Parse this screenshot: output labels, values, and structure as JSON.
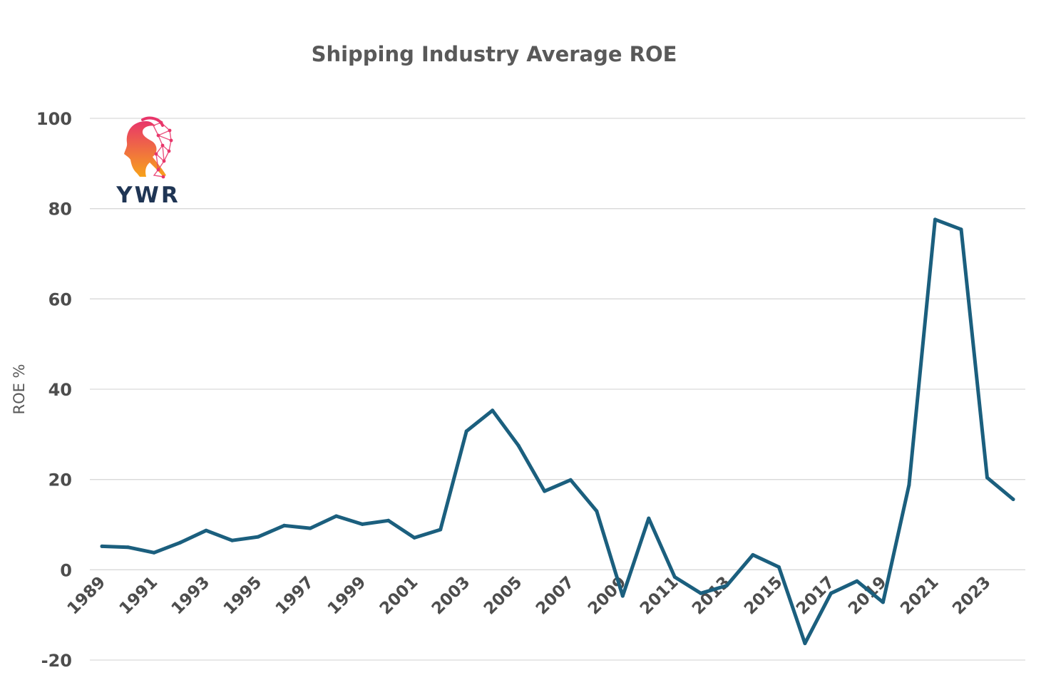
{
  "logo": {
    "text": "YWR",
    "colors": {
      "text": "#1f3554",
      "gradient_start": "#e8366a",
      "gradient_end": "#f7a21b"
    }
  },
  "chart_data": {
    "type": "line",
    "title": "Shipping  Industry Average ROE",
    "xlabel": "",
    "ylabel": "ROE %",
    "ylim": [
      -20,
      100
    ],
    "yticks": [
      -20,
      0,
      20,
      40,
      60,
      80,
      100
    ],
    "grid": true,
    "legend": "none",
    "x": [
      1989,
      1990,
      1991,
      1992,
      1993,
      1994,
      1995,
      1996,
      1997,
      1998,
      1999,
      2000,
      2001,
      2002,
      2003,
      2004,
      2005,
      2006,
      2007,
      2008,
      2009,
      2010,
      2011,
      2012,
      2013,
      2014,
      2015,
      2016,
      2017,
      2018,
      2019,
      2020,
      2021,
      2022,
      2023,
      2024
    ],
    "x_tick_labels": [
      "1989",
      "1991",
      "1993",
      "1995",
      "1997",
      "1999",
      "2001",
      "2003",
      "2005",
      "2007",
      "2009",
      "2011",
      "2013",
      "2015",
      "2017",
      "2019",
      "2021",
      "2023"
    ],
    "series": [
      {
        "color": "#1b5f7e",
        "values": [
          5.2,
          5.0,
          3.8,
          6.0,
          8.7,
          6.5,
          7.3,
          9.8,
          9.2,
          11.9,
          10.1,
          10.9,
          7.1,
          8.9,
          30.7,
          35.3,
          27.5,
          17.4,
          19.9,
          13.0,
          -5.8,
          11.4,
          -1.6,
          -5.2,
          -3.5,
          3.3,
          0.6,
          -16.3,
          -5.2,
          -2.5,
          -7.2,
          18.8,
          77.6,
          75.4,
          20.4,
          15.6
        ]
      }
    ]
  }
}
